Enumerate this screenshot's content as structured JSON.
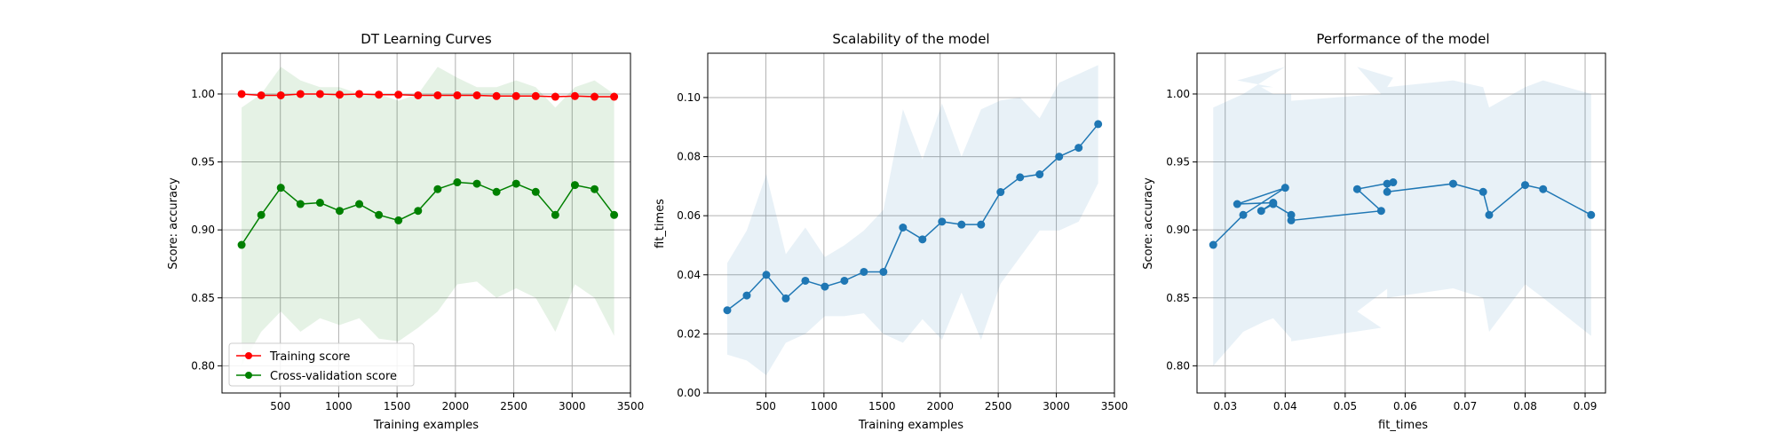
{
  "chart_data": [
    {
      "type": "line",
      "title": "DT Learning Curves",
      "xlabel": "Training examples",
      "ylabel": "Score: accuracy",
      "xlim": [
        0,
        3500
      ],
      "ylim": [
        0.78,
        1.03
      ],
      "grid": true,
      "legend_position": "lower-left",
      "xticks": [
        500,
        1000,
        1500,
        2000,
        2500,
        3000,
        3500
      ],
      "xtick_labels": [
        "500",
        "1000",
        "1500",
        "2000",
        "2500",
        "3000",
        "3500"
      ],
      "yticks": [
        0.8,
        0.85,
        0.9,
        0.95,
        1.0
      ],
      "ytick_labels": [
        "0.80",
        "0.85",
        "0.90",
        "0.95",
        "1.00"
      ],
      "x": [
        168,
        336,
        504,
        672,
        840,
        1008,
        1176,
        1344,
        1512,
        1680,
        1848,
        2016,
        2184,
        2352,
        2520,
        2688,
        2856,
        3024,
        3192,
        3360
      ],
      "series": [
        {
          "name": "Training score",
          "color": "#ff0000",
          "values": [
            1.0,
            0.999,
            0.999,
            1.0,
            1.0,
            0.9995,
            1.0,
            0.9995,
            0.9995,
            0.999,
            0.999,
            0.999,
            0.999,
            0.9985,
            0.9985,
            0.9985,
            0.998,
            0.9985,
            0.998,
            0.998
          ]
        },
        {
          "name": "Cross-validation score",
          "color": "#008000",
          "values": [
            0.889,
            0.911,
            0.931,
            0.919,
            0.92,
            0.914,
            0.919,
            0.911,
            0.907,
            0.914,
            0.93,
            0.935,
            0.934,
            0.928,
            0.934,
            0.928,
            0.911,
            0.933,
            0.93,
            0.911
          ],
          "band_upper": [
            0.99,
            1.0,
            1.02,
            1.01,
            1.005,
            1.005,
            1.0,
            1.0,
            0.995,
            1.0,
            1.02,
            1.012,
            1.005,
            1.005,
            1.01,
            1.005,
            0.99,
            1.005,
            1.01,
            1.0
          ],
          "band_lower": [
            0.8,
            0.825,
            0.84,
            0.825,
            0.835,
            0.83,
            0.835,
            0.82,
            0.818,
            0.828,
            0.84,
            0.86,
            0.862,
            0.85,
            0.857,
            0.85,
            0.825,
            0.86,
            0.85,
            0.822
          ]
        }
      ]
    },
    {
      "type": "line",
      "title": "Scalability of the model",
      "xlabel": "Training examples",
      "ylabel": "fit_times",
      "xlim": [
        0,
        3500
      ],
      "ylim": [
        0.0,
        0.115
      ],
      "grid": true,
      "xticks": [
        500,
        1000,
        1500,
        2000,
        2500,
        3000,
        3500
      ],
      "xtick_labels": [
        "500",
        "1000",
        "1500",
        "2000",
        "2500",
        "3000",
        "3500"
      ],
      "yticks": [
        0.0,
        0.02,
        0.04,
        0.06,
        0.08,
        0.1
      ],
      "ytick_labels": [
        "0.00",
        "0.02",
        "0.04",
        "0.06",
        "0.08",
        "0.10"
      ],
      "x": [
        168,
        336,
        504,
        672,
        840,
        1008,
        1176,
        1344,
        1512,
        1680,
        1848,
        2016,
        2184,
        2352,
        2520,
        2688,
        2856,
        3024,
        3192,
        3360
      ],
      "series": [
        {
          "color": "#1f77b4",
          "values": [
            0.028,
            0.033,
            0.04,
            0.032,
            0.038,
            0.036,
            0.038,
            0.041,
            0.041,
            0.056,
            0.052,
            0.058,
            0.057,
            0.057,
            0.068,
            0.073,
            0.074,
            0.08,
            0.083,
            0.091
          ],
          "band_upper": [
            0.044,
            0.055,
            0.074,
            0.047,
            0.056,
            0.046,
            0.05,
            0.055,
            0.062,
            0.096,
            0.079,
            0.098,
            0.08,
            0.096,
            0.099,
            0.1,
            0.093,
            0.105,
            0.108,
            0.111
          ],
          "band_lower": [
            0.013,
            0.011,
            0.006,
            0.017,
            0.02,
            0.026,
            0.026,
            0.027,
            0.02,
            0.017,
            0.025,
            0.018,
            0.034,
            0.018,
            0.037,
            0.046,
            0.055,
            0.055,
            0.058,
            0.071
          ]
        }
      ]
    },
    {
      "type": "line",
      "title": "Performance of the model",
      "xlabel": "fit_times",
      "ylabel": "Score: accuracy",
      "xlim": [
        0.0253,
        0.0934
      ],
      "ylim": [
        0.78,
        1.03
      ],
      "grid": true,
      "xticks": [
        0.03,
        0.04,
        0.05,
        0.06,
        0.07,
        0.08,
        0.09
      ],
      "xtick_labels": [
        "0.03",
        "0.04",
        "0.05",
        "0.06",
        "0.07",
        "0.08",
        "0.09"
      ],
      "yticks": [
        0.8,
        0.85,
        0.9,
        0.95,
        1.0
      ],
      "ytick_labels": [
        "0.80",
        "0.85",
        "0.90",
        "0.95",
        "1.00"
      ],
      "series": [
        {
          "color": "#1f77b4",
          "x": [
            0.028,
            0.033,
            0.04,
            0.032,
            0.038,
            0.036,
            0.038,
            0.041,
            0.041,
            0.056,
            0.052,
            0.058,
            0.057,
            0.057,
            0.068,
            0.073,
            0.074,
            0.08,
            0.083,
            0.091
          ],
          "values": [
            0.889,
            0.911,
            0.931,
            0.919,
            0.92,
            0.914,
            0.919,
            0.911,
            0.907,
            0.914,
            0.93,
            0.935,
            0.934,
            0.928,
            0.934,
            0.928,
            0.911,
            0.933,
            0.93,
            0.911
          ],
          "band_upper": [
            0.99,
            1.0,
            1.02,
            1.01,
            1.005,
            1.005,
            1.0,
            1.0,
            0.995,
            1.0,
            1.02,
            1.012,
            1.005,
            1.005,
            1.01,
            1.005,
            0.99,
            1.005,
            1.01,
            1.0
          ],
          "band_lower": [
            0.8,
            0.825,
            0.84,
            0.825,
            0.835,
            0.83,
            0.835,
            0.82,
            0.818,
            0.828,
            0.84,
            0.86,
            0.862,
            0.85,
            0.857,
            0.85,
            0.825,
            0.86,
            0.85,
            0.822
          ]
        }
      ]
    }
  ]
}
